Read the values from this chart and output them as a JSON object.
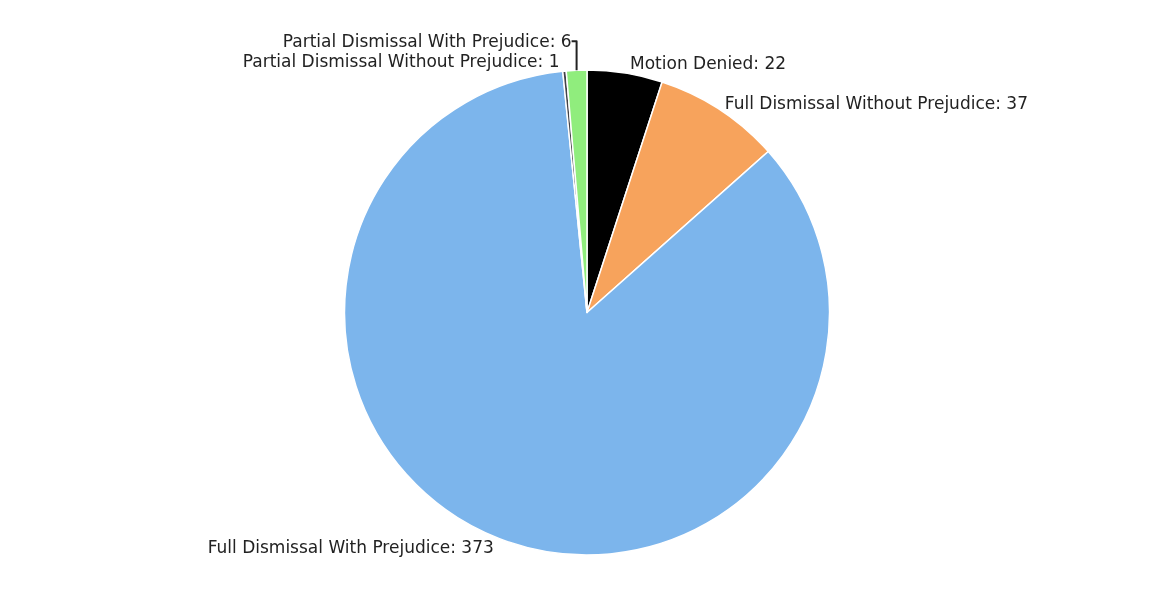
{
  "chart_data": {
    "type": "pie",
    "categories": [
      "Motion Denied",
      "Full Dismissal Without Prejudice",
      "Full Dismissal With Prejudice",
      "Partial Dismissal Without Prejudice",
      "Partial Dismissal With Prejudice"
    ],
    "values": [
      22,
      37,
      373,
      1,
      6
    ],
    "colors": [
      "#000000",
      "#f7a35c",
      "#7cb5ec",
      "#434348",
      "#90ed7d"
    ],
    "value_labels": [
      ": 22",
      ": 37",
      ": 373",
      ": 1",
      ": 6"
    ],
    "legend": false
  }
}
